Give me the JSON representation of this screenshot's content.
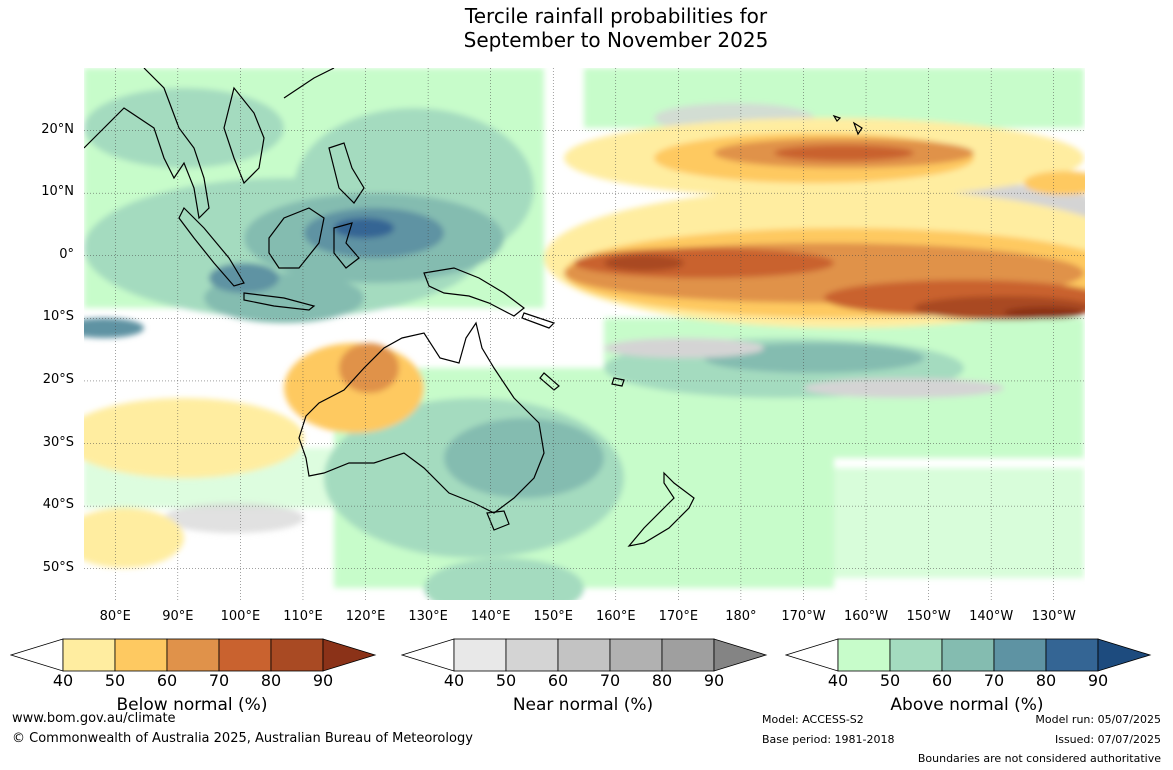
{
  "title": {
    "line1": "Tercile rainfall probabilities for",
    "line2": "September to November 2025"
  },
  "map": {
    "projection": "equirectangular",
    "lon_range": [
      75,
      235
    ],
    "lat_range": [
      -55,
      30
    ],
    "lat_labels": [
      "20°N",
      "10°N",
      "0°",
      "10°S",
      "20°S",
      "30°S",
      "40°S",
      "50°S"
    ],
    "lat_values": [
      20,
      10,
      0,
      -10,
      -20,
      -30,
      -40,
      -50
    ],
    "lon_labels": [
      "80°E",
      "90°E",
      "100°E",
      "110°E",
      "120°E",
      "130°E",
      "140°E",
      "150°E",
      "160°E",
      "170°E",
      "180°",
      "170°W",
      "160°W",
      "150°W",
      "140°W",
      "130°W"
    ],
    "lon_values": [
      80,
      90,
      100,
      110,
      120,
      130,
      140,
      150,
      160,
      170,
      180,
      190,
      200,
      210,
      220,
      230
    ],
    "gridlines": true
  },
  "colorbars": [
    {
      "title": "Below normal (%)",
      "ticks": [
        "40",
        "50",
        "60",
        "70",
        "80",
        "90"
      ],
      "colors": [
        "#ffeda0",
        "#fec961",
        "#e0924a",
        "#c9622f",
        "#a94a23",
        "#8b3218"
      ]
    },
    {
      "title": "Near normal (%)",
      "ticks": [
        "40",
        "50",
        "60",
        "70",
        "80",
        "90"
      ],
      "colors": [
        "#e8e8e8",
        "#d4d4d4",
        "#c3c3c3",
        "#b1b1b1",
        "#9f9f9f",
        "#848484"
      ]
    },
    {
      "title": "Above normal (%)",
      "ticks": [
        "40",
        "50",
        "60",
        "70",
        "80",
        "90"
      ],
      "colors": [
        "#c7fcca",
        "#a4dbbf",
        "#84bcb0",
        "#5e93a3",
        "#346594",
        "#1d4b7e"
      ]
    }
  ],
  "footer": {
    "url": "www.bom.gov.au/climate",
    "copyright": "© Commonwealth of Australia 2025, Australian Bureau of Meteorology",
    "model": "Model: ACCESS-S2",
    "base_period": "Base period: 1981-2018",
    "model_run": "Model run: 05/07/2025",
    "issued": "Issued: 07/07/2025",
    "disclaimer": "Boundaries are not considered authoritative"
  },
  "colors": {
    "land_outline": "#000000",
    "border_line": "#888888",
    "gridline": "#444444"
  }
}
